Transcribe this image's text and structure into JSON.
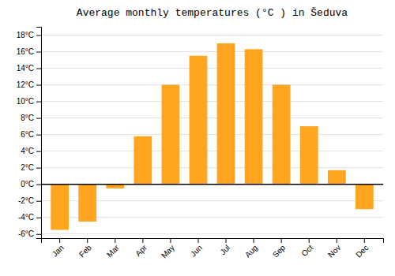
{
  "chart_data": {
    "type": "bar",
    "title": "Average monthly temperatures (°C ) in Šeduva",
    "categories": [
      "Jan",
      "Feb",
      "Mar",
      "Apr",
      "May",
      "Jun",
      "Jul",
      "Aug",
      "Sep",
      "Oct",
      "Nov",
      "Dec"
    ],
    "values": [
      -5.5,
      -4.5,
      -0.5,
      5.8,
      12.0,
      15.5,
      17.0,
      16.3,
      12.0,
      7.0,
      1.7,
      -3.0
    ],
    "color": "#FFA520",
    "ylim": [
      -6.5,
      19
    ],
    "yticks": [
      {
        "value": -6,
        "label": "-6°C"
      },
      {
        "value": -4,
        "label": "-4°C"
      },
      {
        "value": -2,
        "label": "-2°C"
      },
      {
        "value": 0,
        "label": "0°C"
      },
      {
        "value": 2,
        "label": "2°C"
      },
      {
        "value": 4,
        "label": "4°C"
      },
      {
        "value": 6,
        "label": "6°C"
      },
      {
        "value": 8,
        "label": "8°C"
      },
      {
        "value": 10,
        "label": "10°C"
      },
      {
        "value": 12,
        "label": "12°C"
      },
      {
        "value": 14,
        "label": "14°C"
      },
      {
        "value": 16,
        "label": "16°C"
      },
      {
        "value": 18,
        "label": "18°C"
      }
    ],
    "grid": true
  }
}
